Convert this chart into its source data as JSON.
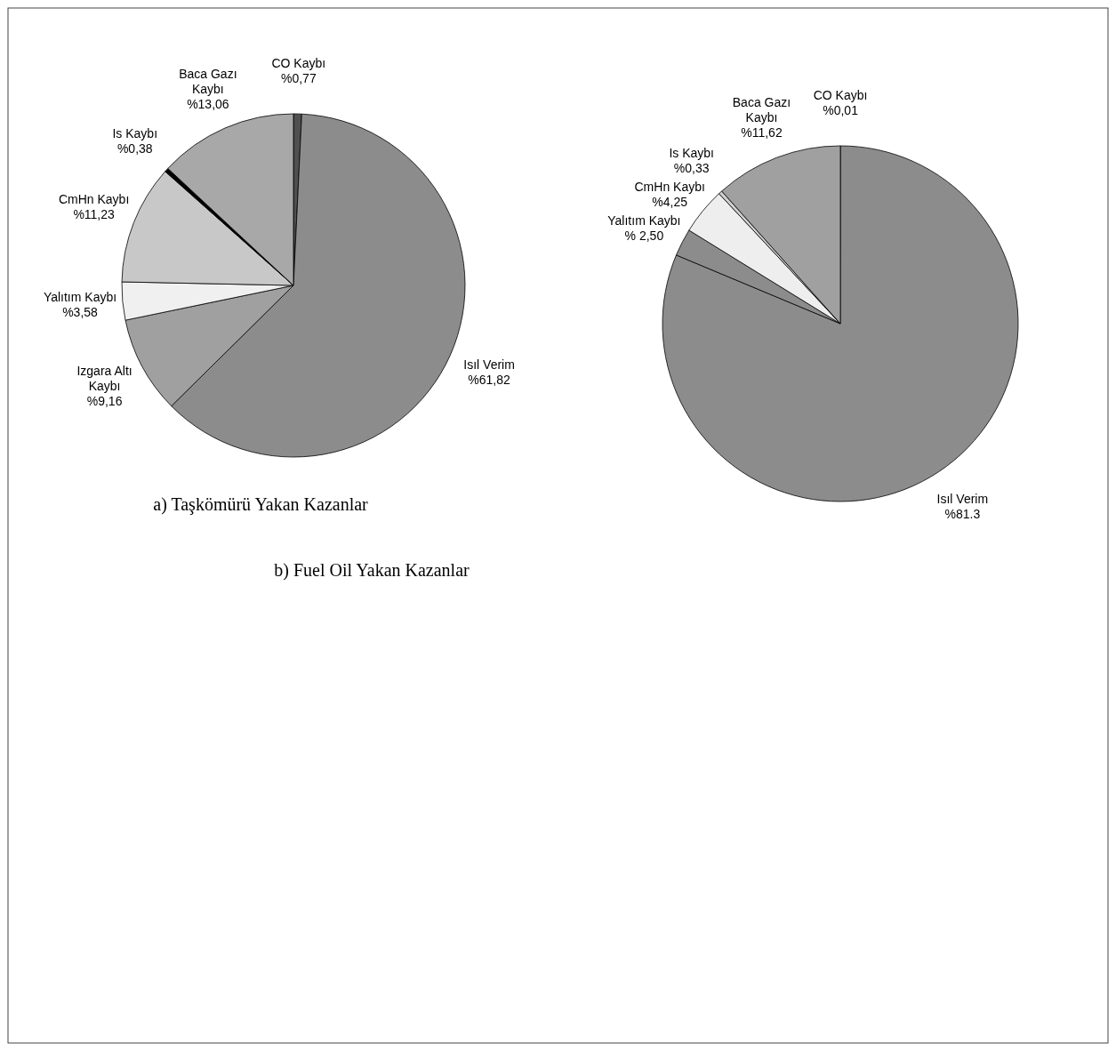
{
  "chart_data": [
    {
      "type": "pie",
      "title": "a) Taşkömürü Yakan Kazanlar",
      "categories": [
        "CO Kaybı",
        "Isıl Verim",
        "Izgara Altı Kaybı",
        "Yalıtım Kaybı",
        "CmHn Kaybı",
        "Is Kaybı",
        "Baca Gazı Kaybı"
      ],
      "values": [
        0.77,
        61.82,
        9.16,
        3.58,
        11.23,
        0.38,
        13.06
      ],
      "value_labels": [
        "%0,77",
        "%61,82",
        "%9,16",
        "%3,58",
        "%11,23",
        "%0,38",
        "%13,06"
      ],
      "colors": [
        "#505050",
        "#8c8c8c",
        "#a0a0a0",
        "#f0f0f0",
        "#c8c8c8",
        "#000000",
        "#a8a8a8"
      ]
    },
    {
      "type": "pie",
      "title": "b) Fuel Oil Yakan Kazanlar",
      "categories": [
        "CO Kaybı",
        "Isıl Verim",
        "Yalıtım Kaybı",
        "CmHn Kaybı",
        "Is Kaybı",
        "Baca Gazı Kaybı"
      ],
      "values": [
        0.01,
        81.3,
        2.5,
        4.25,
        0.33,
        11.62
      ],
      "value_labels": [
        "%0,01",
        "%81.3",
        "% 2,50",
        "%4,25",
        "%0,33",
        "%11,62"
      ],
      "colors": [
        "#000000",
        "#8c8c8c",
        "#8c8c8c",
        "#eeeeee",
        "#cfcfcf",
        "#a0a0a0"
      ]
    }
  ]
}
